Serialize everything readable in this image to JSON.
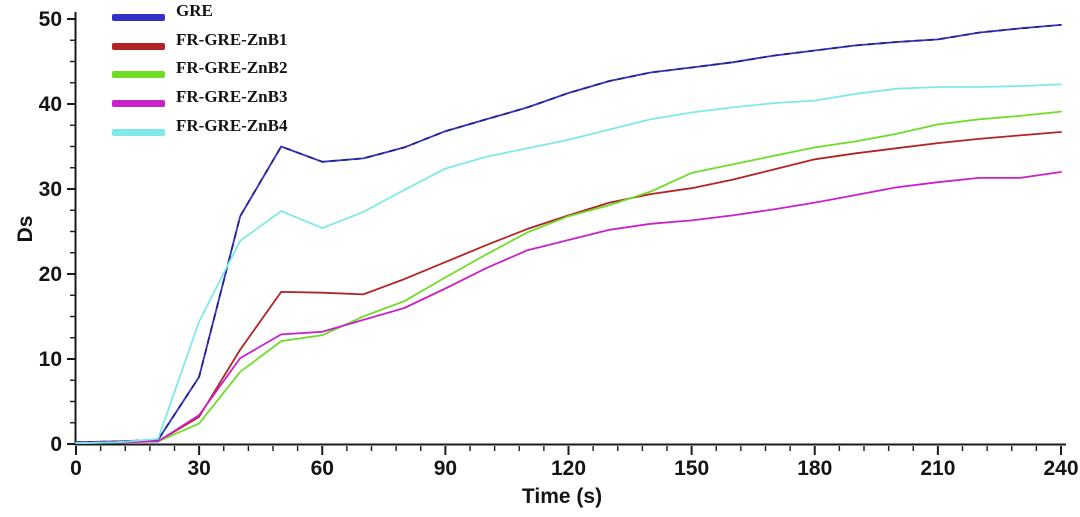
{
  "chart_data": {
    "type": "line",
    "title": "",
    "xlabel": "Time (s)",
    "ylabel": "Ds",
    "xlim": [
      0,
      240
    ],
    "ylim": [
      0,
      50
    ],
    "xticks": [
      0,
      30,
      60,
      90,
      120,
      150,
      180,
      210,
      240
    ],
    "x_minor_step": 6,
    "yticks": [
      0,
      10,
      20,
      30,
      40,
      50
    ],
    "y_minor_step": 2.5,
    "grid": false,
    "legend_position": "top-left",
    "axis_color": "#1a1a1a",
    "text_color": "#141414",
    "x": [
      0,
      10,
      20,
      30,
      40,
      50,
      60,
      70,
      80,
      90,
      100,
      110,
      120,
      130,
      140,
      150,
      160,
      170,
      180,
      190,
      200,
      210,
      220,
      230,
      240
    ],
    "series": [
      {
        "name": "GRE",
        "color": "#3431c8",
        "dash_overlay_color": "#23237e",
        "values": [
          0.2,
          0.3,
          0.5,
          7.9,
          26.8,
          35.0,
          33.2,
          33.6,
          34.9,
          36.8,
          38.2,
          39.6,
          41.3,
          42.7,
          43.7,
          44.3,
          44.9,
          45.7,
          46.3,
          46.9,
          47.3,
          47.6,
          48.4,
          48.9,
          49.3
        ]
      },
      {
        "name": "FR-GRE-ZnB1",
        "color": "#b22424",
        "values": [
          0.1,
          0.2,
          0.3,
          3.2,
          11.1,
          17.9,
          17.8,
          17.6,
          19.4,
          21.4,
          23.4,
          25.3,
          26.9,
          28.4,
          29.4,
          30.1,
          31.1,
          32.3,
          33.5,
          34.2,
          34.8,
          35.4,
          35.9,
          36.3,
          36.7
        ]
      },
      {
        "name": "FR-GRE-ZnB2",
        "color": "#6fdd28",
        "values": [
          0.1,
          0.2,
          0.3,
          2.4,
          8.5,
          12.1,
          12.8,
          15.0,
          16.8,
          19.6,
          22.3,
          24.9,
          26.8,
          28.1,
          29.7,
          31.9,
          32.9,
          33.9,
          34.9,
          35.6,
          36.5,
          37.6,
          38.2,
          38.6,
          39.1
        ]
      },
      {
        "name": "FR-GRE-ZnB3",
        "color": "#c823c8",
        "values": [
          0.1,
          0.2,
          0.3,
          3.4,
          10.1,
          12.9,
          13.2,
          14.6,
          16.0,
          18.3,
          20.7,
          22.8,
          24.0,
          25.2,
          25.9,
          26.3,
          26.9,
          27.6,
          28.4,
          29.3,
          30.2,
          30.8,
          31.3,
          31.3,
          32.0
        ]
      },
      {
        "name": "FR-GRE-ZnB4",
        "color": "#7fe9e9",
        "values": [
          0.1,
          0.2,
          0.6,
          14.4,
          23.9,
          27.4,
          25.4,
          27.3,
          29.9,
          32.4,
          33.8,
          34.8,
          35.8,
          37.0,
          38.2,
          39.0,
          39.6,
          40.1,
          40.4,
          41.2,
          41.8,
          42.0,
          42.0,
          42.1,
          42.3
        ]
      }
    ]
  }
}
